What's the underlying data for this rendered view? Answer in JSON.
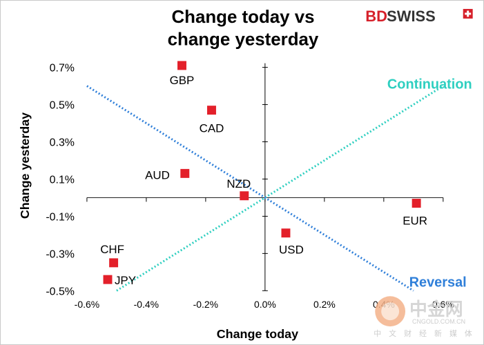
{
  "chart_data": {
    "type": "scatter",
    "title_lines": [
      "Change today vs",
      "change yesterday"
    ],
    "xlabel": "Change today",
    "ylabel": "Change yesterday",
    "xlim": [
      -0.6,
      0.6
    ],
    "ylim": [
      -0.5,
      0.7
    ],
    "x_ticks": [
      -0.6,
      -0.4,
      -0.2,
      0.0,
      0.2,
      0.4,
      0.6
    ],
    "x_tick_labels": [
      "-0.6%",
      "-0.4%",
      "-0.2%",
      "0.0%",
      "0.2%",
      "0.4%",
      "0.6%"
    ],
    "y_ticks": [
      0.7,
      0.5,
      0.3,
      0.1,
      -0.1,
      -0.3,
      -0.5
    ],
    "y_tick_labels": [
      "0.7%",
      "0.5%",
      "0.3%",
      "0.1%",
      "-0.1%",
      "-0.3%",
      "-0.5%"
    ],
    "marker_color": "#e3202a",
    "points": [
      {
        "name": "GBP",
        "x": -0.28,
        "y": 0.71
      },
      {
        "name": "CAD",
        "x": -0.18,
        "y": 0.47
      },
      {
        "name": "AUD",
        "x": -0.27,
        "y": 0.13
      },
      {
        "name": "NZD",
        "x": -0.07,
        "y": 0.01
      },
      {
        "name": "EUR",
        "x": 0.51,
        "y": -0.03
      },
      {
        "name": "USD",
        "x": 0.07,
        "y": -0.19
      },
      {
        "name": "CHF",
        "x": -0.51,
        "y": -0.35
      },
      {
        "name": "JPY",
        "x": -0.53,
        "y": -0.44
      }
    ],
    "reference_lines": [
      {
        "name": "Continuation",
        "color": "#2ecfc0",
        "from": [
          -0.5,
          -0.5
        ],
        "to": [
          0.6,
          0.6
        ]
      },
      {
        "name": "Reversal",
        "color": "#2f7fd9",
        "from": [
          -0.6,
          0.6
        ],
        "to": [
          0.5,
          -0.5
        ]
      }
    ],
    "annotations": [
      "Continuation",
      "Reversal"
    ],
    "grid": false
  },
  "brand": {
    "bd": "BD",
    "swiss": "SWISS"
  },
  "watermark": {
    "main": "中金网",
    "site": "CNGOLD.COM.CN",
    "sub": "中 文 财 经 新 媒 体"
  }
}
